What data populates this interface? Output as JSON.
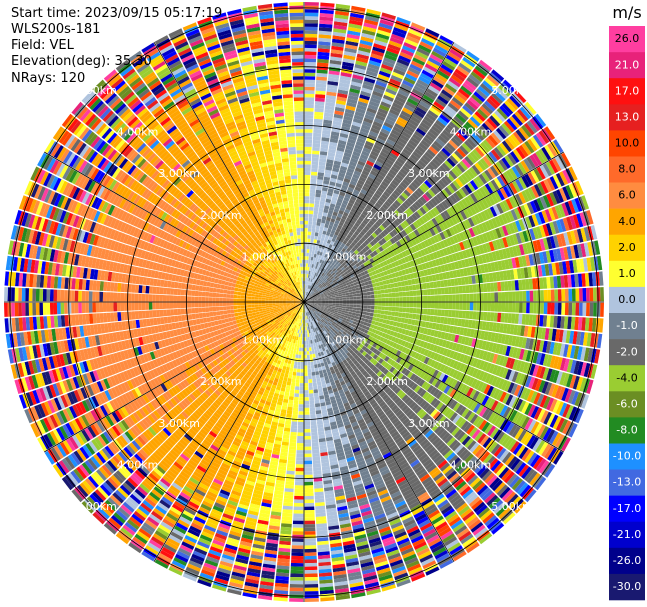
{
  "header": {
    "start_time": "Start time: 2023/09/15 05:17:19",
    "instrument": "WLS200s-181",
    "field": "Field: VEL",
    "elevation": "Elevation(deg): 35.30",
    "nrays": "NRays: 120"
  },
  "chart_data": {
    "type": "heatmap",
    "projection": "polar-ppi",
    "field": "VEL",
    "units": "m/s",
    "nrays": 120,
    "elevation_deg": 35.3,
    "max_range_km": 5.1,
    "range_rings_km": [
      1.0,
      2.0,
      3.0,
      4.0,
      5.0
    ],
    "ring_labels": [
      "1.00km",
      "2.00km",
      "3.00km",
      "4.00km",
      "5.00km"
    ],
    "spoke_angles_deg": [
      0,
      30,
      60,
      90,
      120,
      150,
      180,
      210,
      240,
      270,
      300,
      330
    ],
    "colorbar": {
      "label": "m/s",
      "ticks": [
        "26.0",
        "21.0",
        "17.0",
        "13.0",
        "10.0",
        "8.0",
        "6.0",
        "4.0",
        "2.0",
        "1.0",
        "0.0",
        "-1.0",
        "-2.0",
        "-4.0",
        "-6.0",
        "-8.0",
        "-10.0",
        "-13.0",
        "-17.0",
        "-21.0",
        "-26.0",
        "-30.0"
      ],
      "colors": [
        "#FF3EA0",
        "#E8227A",
        "#FF1010",
        "#E62020",
        "#FF4500",
        "#FF6A2A",
        "#FF8C40",
        "#FFA500",
        "#FFD200",
        "#FFFF30",
        "#B0C4DE",
        "#708090",
        "#696969",
        "#9ACD32",
        "#6B8E23",
        "#228B22",
        "#1E90FF",
        "#4169E1",
        "#0000FF",
        "#0000CD",
        "#00008B",
        "#191970"
      ]
    },
    "field_summary": {
      "west_sector": "positive 2 to 6 m/s (yellow-orange)",
      "east_sector": "negative -2 to -6 m/s (green)",
      "zero_line": "north-south band near 0 m/s (gray)",
      "outer_ranges": "noisy speckle beyond ~3.5 km"
    }
  }
}
